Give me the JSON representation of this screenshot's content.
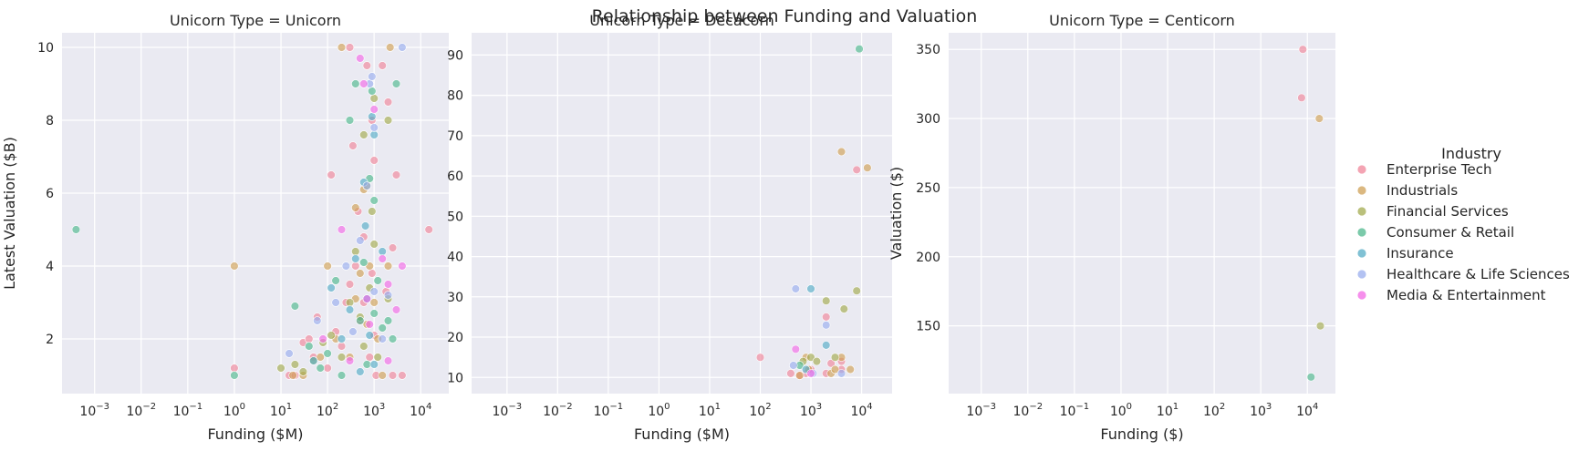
{
  "chart_data": {
    "type": "scatter",
    "title": "Relationship between Funding and Valuation",
    "x_scale": "log",
    "x_tick_labels": [
      "10^-3",
      "10^-2",
      "10^-1",
      "10^0",
      "10^1",
      "10^2",
      "10^3",
      "10^4"
    ],
    "legend": {
      "title": "Industry",
      "placement": "right",
      "entries": [
        {
          "name": "Enterprise Tech",
          "color": "#f0859a"
        },
        {
          "name": "Industrials",
          "color": "#cfa055"
        },
        {
          "name": "Financial Services",
          "color": "#a3ab4f"
        },
        {
          "name": "Consumer & Retail",
          "color": "#4fb88d"
        },
        {
          "name": "Insurance",
          "color": "#55acc6"
        },
        {
          "name": "Healthcare & Life Sciences",
          "color": "#9aaeee"
        },
        {
          "name": "Media & Entertainment",
          "color": "#f36ae6"
        }
      ]
    },
    "panels": [
      {
        "title": "Unicorn Type = Unicorn",
        "xlabel": "Funding ($M)",
        "ylabel": "Latest Valuation ($B)",
        "xlim": [
          0.0002,
          40000
        ],
        "ylim": [
          0.5,
          10.4
        ],
        "yticks": [
          2,
          4,
          6,
          8,
          10
        ],
        "series": [
          {
            "industry": "Enterprise Tech",
            "points": [
              [
                1,
                1.2
              ],
              [
                15,
                1
              ],
              [
                20,
                1
              ],
              [
                30,
                1.9
              ],
              [
                40,
                2
              ],
              [
                50,
                1.5
              ],
              [
                60,
                2.6
              ],
              [
                100,
                1.2
              ],
              [
                120,
                6.5
              ],
              [
                150,
                2.2
              ],
              [
                200,
                1.8
              ],
              [
                250,
                3
              ],
              [
                300,
                3.5
              ],
              [
                300,
                10
              ],
              [
                350,
                7.3
              ],
              [
                400,
                4
              ],
              [
                450,
                5.5
              ],
              [
                500,
                2.5
              ],
              [
                600,
                3
              ],
              [
                700,
                9.5
              ],
              [
                800,
                1.5
              ],
              [
                900,
                8
              ],
              [
                1000,
                6.9
              ],
              [
                1000,
                2.1
              ],
              [
                1100,
                1
              ],
              [
                1500,
                9.5
              ],
              [
                1800,
                3.3
              ],
              [
                2000,
                8.5
              ],
              [
                2500,
                1
              ],
              [
                2500,
                4.5
              ],
              [
                3000,
                6.5
              ],
              [
                4000,
                1
              ],
              [
                15000,
                5
              ],
              [
                600,
                4.8
              ],
              [
                900,
                3.8
              ]
            ]
          },
          {
            "industry": "Industrials",
            "points": [
              [
                1,
                4
              ],
              [
                18,
                1
              ],
              [
                30,
                1
              ],
              [
                70,
                1.5
              ],
              [
                100,
                4
              ],
              [
                150,
                2
              ],
              [
                200,
                10
              ],
              [
                300,
                1.5
              ],
              [
                400,
                5.6
              ],
              [
                500,
                3.8
              ],
              [
                600,
                6.1
              ],
              [
                700,
                2.4
              ],
              [
                800,
                4
              ],
              [
                1000,
                3
              ],
              [
                1200,
                2
              ],
              [
                2000,
                4
              ],
              [
                2200,
                10
              ],
              [
                1500,
                1
              ],
              [
                400,
                3.1
              ]
            ]
          },
          {
            "industry": "Financial Services",
            "points": [
              [
                10,
                1.2
              ],
              [
                20,
                1.3
              ],
              [
                30,
                1.1
              ],
              [
                50,
                1.4
              ],
              [
                80,
                1.9
              ],
              [
                120,
                2.1
              ],
              [
                200,
                1.5
              ],
              [
                300,
                3
              ],
              [
                400,
                4.4
              ],
              [
                500,
                2.6
              ],
              [
                600,
                7.6
              ],
              [
                700,
                6.2
              ],
              [
                800,
                3.4
              ],
              [
                900,
                5.5
              ],
              [
                1000,
                8.6
              ],
              [
                1000,
                4.6
              ],
              [
                1200,
                1.5
              ],
              [
                2000,
                8
              ],
              [
                2000,
                3.1
              ],
              [
                600,
                1.8
              ]
            ]
          },
          {
            "industry": "Consumer & Retail",
            "points": [
              [
                0.0004,
                5
              ],
              [
                1,
                1
              ],
              [
                20,
                2.9
              ],
              [
                40,
                1.8
              ],
              [
                70,
                1.2
              ],
              [
                100,
                1.6
              ],
              [
                150,
                3.6
              ],
              [
                200,
                1
              ],
              [
                300,
                8
              ],
              [
                400,
                9
              ],
              [
                500,
                2.5
              ],
              [
                600,
                4.1
              ],
              [
                700,
                1.3
              ],
              [
                800,
                6.4
              ],
              [
                900,
                8.8
              ],
              [
                1000,
                5.8
              ],
              [
                1000,
                2.7
              ],
              [
                1500,
                2.3
              ],
              [
                2000,
                2.5
              ],
              [
                2500,
                2
              ],
              [
                3000,
                9
              ],
              [
                1200,
                3.6
              ]
            ]
          },
          {
            "industry": "Insurance",
            "points": [
              [
                50,
                1.4
              ],
              [
                120,
                3.4
              ],
              [
                200,
                2
              ],
              [
                300,
                2.8
              ],
              [
                400,
                4.2
              ],
              [
                500,
                1.1
              ],
              [
                600,
                6.3
              ],
              [
                700,
                3.1
              ],
              [
                900,
                8.1
              ],
              [
                1000,
                7.6
              ],
              [
                1000,
                1.3
              ],
              [
                1500,
                4.4
              ],
              [
                800,
                2.1
              ],
              [
                650,
                5.1
              ]
            ]
          },
          {
            "industry": "Healthcare & Life Sciences",
            "points": [
              [
                15,
                1.6
              ],
              [
                60,
                2.5
              ],
              [
                150,
                3
              ],
              [
                250,
                4
              ],
              [
                350,
                2.2
              ],
              [
                500,
                4.7
              ],
              [
                700,
                6.2
              ],
              [
                800,
                9
              ],
              [
                900,
                9.2
              ],
              [
                1000,
                7.8
              ],
              [
                1500,
                2
              ],
              [
                2000,
                3.2
              ],
              [
                4000,
                10
              ],
              [
                1000,
                3.3
              ]
            ]
          },
          {
            "industry": "Media & Entertainment",
            "points": [
              [
                80,
                2
              ],
              [
                200,
                5
              ],
              [
                300,
                1.4
              ],
              [
                500,
                9.7
              ],
              [
                600,
                9
              ],
              [
                700,
                3.1
              ],
              [
                800,
                2.4
              ],
              [
                1000,
                8.3
              ],
              [
                1500,
                4.2
              ],
              [
                2000,
                3.5
              ],
              [
                3000,
                2.8
              ],
              [
                4000,
                4
              ],
              [
                2000,
                1.4
              ]
            ]
          }
        ]
      },
      {
        "title": "Unicorn Type = Decacorn",
        "xlabel": "Funding ($M)",
        "ylabel": "",
        "xlim": [
          0.0002,
          40000
        ],
        "ylim": [
          6,
          95.5
        ],
        "yticks": [
          10,
          20,
          30,
          40,
          50,
          60,
          70,
          80,
          90
        ],
        "series": [
          {
            "industry": "Enterprise Tech",
            "points": [
              [
                100,
                15
              ],
              [
                400,
                11
              ],
              [
                600,
                10.5
              ],
              [
                800,
                11
              ],
              [
                1000,
                12
              ],
              [
                2000,
                25
              ],
              [
                2000,
                11
              ],
              [
                4000,
                14
              ],
              [
                4000,
                12
              ],
              [
                8000,
                61.5
              ],
              [
                2500,
                13.5
              ]
            ]
          },
          {
            "industry": "Industrials",
            "points": [
              [
                600,
                10.5
              ],
              [
                800,
                15
              ],
              [
                900,
                12
              ],
              [
                2500,
                11
              ],
              [
                3000,
                12
              ],
              [
                4000,
                66
              ],
              [
                4000,
                15
              ],
              [
                6000,
                12
              ],
              [
                13000,
                62
              ]
            ]
          },
          {
            "industry": "Financial Services",
            "points": [
              [
                700,
                14
              ],
              [
                1000,
                15
              ],
              [
                1300,
                14
              ],
              [
                2000,
                29
              ],
              [
                3000,
                15
              ],
              [
                4500,
                27
              ],
              [
                8000,
                31.5
              ]
            ]
          },
          {
            "industry": "Consumer & Retail",
            "points": [
              [
                9000,
                91.5
              ],
              [
                600,
                13
              ]
            ]
          },
          {
            "industry": "Insurance",
            "points": [
              [
                1000,
                32
              ],
              [
                2000,
                18
              ],
              [
                800,
                12
              ]
            ]
          },
          {
            "industry": "Healthcare & Life Sciences",
            "points": [
              [
                450,
                13
              ],
              [
                500,
                32
              ],
              [
                1100,
                11
              ],
              [
                2000,
                23
              ],
              [
                4000,
                11
              ]
            ]
          },
          {
            "industry": "Media & Entertainment",
            "points": [
              [
                500,
                17
              ],
              [
                1000,
                11
              ]
            ]
          }
        ]
      },
      {
        "title": "Unicorn Type = Centicorn",
        "xlabel": "Funding ($)",
        "ylabel": "Valuation ($)",
        "xlim": [
          0.0002,
          40000
        ],
        "ylim": [
          101,
          362
        ],
        "yticks": [
          150,
          200,
          250,
          300,
          350
        ],
        "series": [
          {
            "industry": "Enterprise Tech",
            "points": [
              [
                8000,
                350
              ],
              [
                7500,
                315
              ]
            ]
          },
          {
            "industry": "Industrials",
            "points": [
              [
                18000,
                300
              ]
            ]
          },
          {
            "industry": "Financial Services",
            "points": [
              [
                19000,
                150
              ]
            ]
          },
          {
            "industry": "Consumer & Retail",
            "points": [
              [
                12000,
                113
              ]
            ]
          }
        ]
      }
    ]
  }
}
